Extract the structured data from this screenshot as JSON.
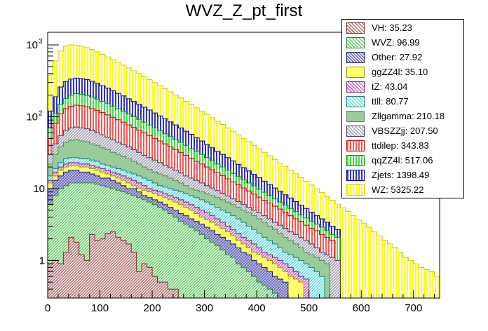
{
  "chart_data": {
    "type": "stacked-histogram",
    "title": "WVZ_Z_pt_first",
    "xlabel": "",
    "ylabel": "",
    "y_scale": "log",
    "xlim": [
      0,
      750
    ],
    "ylim": [
      0.3,
      1500
    ],
    "bin_width": 10,
    "x_ticks": [
      0,
      100,
      200,
      300,
      400,
      500,
      600,
      700
    ],
    "x_tick_labels": [
      "0",
      "100",
      "200",
      "300",
      "400",
      "500",
      "600",
      "700"
    ],
    "y_tick_labels": [
      {
        "value": 1,
        "label": "1"
      },
      {
        "value": 10,
        "label": "10"
      },
      {
        "value": 100,
        "label": "10",
        "exp": "2"
      },
      {
        "value": 1000,
        "label": "10",
        "exp": "3"
      }
    ],
    "legend_position": "top-right",
    "series": [
      {
        "name": "VH: 35.23",
        "color": "#b07070",
        "edge": "#7a2a2a",
        "pattern": "diag"
      },
      {
        "name": "WVZ: 96.99",
        "color": "#66cc66",
        "edge": "#2a8a2a",
        "pattern": "diag"
      },
      {
        "name": "Other: 27.92",
        "color": "#7070c0",
        "edge": "#202080",
        "pattern": "cross"
      },
      {
        "name": "ggZZ4l: 35.10",
        "color": "#ffff66",
        "edge": "#999900",
        "pattern": "solid"
      },
      {
        "name": "tZ: 43.04",
        "color": "#cc66cc",
        "edge": "#7a2a7a",
        "pattern": "diag"
      },
      {
        "name": "ttll: 80.77",
        "color": "#66dddd",
        "edge": "#208080",
        "pattern": "diag"
      },
      {
        "name": "Zllgamma: 210.18",
        "color": "#99cc99",
        "edge": "#5a8a5a",
        "pattern": "solid"
      },
      {
        "name": "VBSZZjj: 207.50",
        "color": "#a0a0b0",
        "edge": "#404060",
        "pattern": "diag"
      },
      {
        "name": "ttdilep: 343.83",
        "color": "#ff5555",
        "edge": "#cc0000",
        "pattern": "vert"
      },
      {
        "name": "qqZZ4l: 517.06",
        "color": "#44dd44",
        "edge": "#009900",
        "pattern": "vert"
      },
      {
        "name": "Zjets: 1398.49",
        "color": "#3333cc",
        "edge": "#000099",
        "pattern": "vert"
      },
      {
        "name": "WZ: 5325.22",
        "color": "#ffff00",
        "edge": "#cccc00",
        "pattern": "vert"
      }
    ],
    "stack_totals": [
      [
        0.9,
        1.0,
        0.9,
        1.3,
        2.1,
        1.8,
        1.2,
        1.0,
        2.3,
        1.9,
        2.0,
        2.4,
        2.5,
        2.1,
        1.9,
        1.7,
        1.3,
        0.7,
        0.9,
        0.8,
        0.6,
        0.5,
        0.5,
        0.4,
        0.4
      ],
      [
        6.0,
        8.0,
        10.0,
        11.0,
        12.0,
        12.0,
        12.0,
        12.0,
        12.0,
        11.5,
        11.0,
        10.5,
        10.0,
        9.5,
        9.0,
        8.5,
        8.0,
        7.5,
        7.0,
        6.5,
        6.0,
        5.5,
        5.0,
        4.5,
        4.0,
        3.5,
        3.2,
        2.9,
        2.6,
        2.3,
        2.0,
        1.8,
        1.6,
        1.4,
        1.2,
        1.1,
        0.9,
        0.8,
        0.7,
        0.6,
        0.5,
        0.45,
        0.4,
        0.35
      ],
      [
        10,
        13,
        15,
        17,
        18,
        18,
        17,
        17,
        16,
        15,
        14,
        14,
        13,
        12,
        11,
        10,
        10,
        9,
        8,
        7.5,
        7,
        6.5,
        6,
        5.5,
        5,
        4.5,
        4.2,
        3.8,
        3.5,
        3.2,
        2.9,
        2.6,
        2.3,
        2.1,
        1.9,
        1.7,
        1.5,
        1.3,
        1.2,
        1.0,
        0.9,
        0.8,
        0.7,
        0.6,
        0.55,
        0.5
      ],
      [
        12,
        15,
        18,
        20,
        21,
        21,
        20,
        20,
        19,
        18,
        17,
        16,
        15,
        14,
        13,
        12,
        11,
        10,
        9.5,
        9,
        8.5,
        8,
        7.5,
        7,
        6.5,
        6,
        5.5,
        5,
        4.5,
        4,
        3.7,
        3.4,
        3.1,
        2.8,
        2.5,
        2.2,
        1.9,
        1.7,
        1.5,
        1.3,
        1.2,
        1.1,
        1.0,
        0.9,
        0.8,
        0.7,
        0.6,
        0.55,
        0.5
      ],
      [
        13,
        17,
        20,
        22,
        23,
        23,
        22,
        22,
        21,
        20,
        19,
        18,
        17,
        16,
        15,
        14,
        13,
        12,
        11,
        10,
        9.5,
        9,
        8.5,
        8,
        7.5,
        7,
        6.5,
        6,
        5.5,
        5,
        4.6,
        4.2,
        3.8,
        3.4,
        3.0,
        2.7,
        2.4,
        2.1,
        1.9,
        1.7,
        1.5,
        1.3,
        1.2,
        1.1,
        1.0,
        0.9,
        0.8,
        0.7,
        0.6,
        0.55
      ],
      [
        15,
        19,
        23,
        26,
        27,
        27,
        26,
        26,
        25,
        24,
        22,
        21,
        20,
        19,
        18,
        17,
        16,
        15,
        14,
        13,
        12,
        11,
        10.5,
        10,
        9.5,
        9,
        8.5,
        8,
        7.5,
        7,
        6.5,
        6,
        5.5,
        5,
        4.6,
        4.2,
        3.8,
        3.4,
        3.0,
        2.7,
        2.4,
        2.1,
        1.9,
        1.7,
        1.5,
        1.3,
        1.2,
        1.1,
        1.0,
        0.9,
        0.8,
        0.7,
        0.6
      ],
      [
        22,
        30,
        38,
        44,
        47,
        48,
        46,
        45,
        42,
        40,
        37,
        35,
        32,
        30,
        28,
        26,
        24,
        22,
        20,
        18.5,
        17,
        16,
        15,
        14,
        13,
        12,
        11,
        10,
        9.5,
        9,
        8.5,
        8,
        7.5,
        7,
        6.5,
        6,
        5.5,
        5,
        4.6,
        4.2,
        3.8,
        3.4,
        3.0,
        2.7,
        2.4,
        2.1,
        1.9,
        1.7,
        1.5,
        1.3,
        1.2,
        1.1,
        1.0,
        0.9
      ],
      [
        30,
        42,
        55,
        65,
        70,
        72,
        70,
        68,
        64,
        60,
        56,
        52,
        48,
        44,
        41,
        38,
        35,
        32,
        29,
        27,
        25,
        23,
        21,
        19.5,
        18,
        16.5,
        15,
        14,
        13,
        12,
        11,
        10.2,
        9.4,
        8.6,
        7.9,
        7.2,
        6.6,
        6.0,
        5.5,
        5.0,
        4.6,
        4.2,
        3.8,
        3.4,
        3.1,
        2.8,
        2.5,
        2.3,
        2.1,
        1.9,
        1.7,
        1.5,
        1.3,
        1.2,
        1.1,
        1.0
      ],
      [
        50,
        80,
        110,
        130,
        140,
        145,
        142,
        138,
        130,
        122,
        114,
        106,
        98,
        91,
        84,
        77,
        71,
        65,
        60,
        55,
        50,
        46,
        42,
        38,
        35,
        32,
        29,
        26.5,
        24,
        22,
        20,
        18.3,
        16.6,
        15.1,
        13.7,
        12.4,
        11.3,
        10.2,
        9.3,
        8.4,
        7.6,
        6.9,
        6.3,
        5.7,
        5.2,
        4.7,
        4.2,
        3.8,
        3.5,
        3.1,
        2.8,
        2.6,
        2.3,
        2.1,
        1.9
      ],
      [
        70,
        110,
        150,
        180,
        200,
        210,
        205,
        198,
        188,
        176,
        164,
        152,
        140,
        129,
        119,
        109,
        100,
        92,
        84,
        77,
        70,
        64,
        58,
        53,
        48,
        44,
        40,
        36,
        33,
        30,
        27,
        24.5,
        22,
        20,
        18,
        16.3,
        14.7,
        13.3,
        12,
        10.9,
        9.8,
        8.9,
        8.0,
        7.2,
        6.5,
        5.9,
        5.3,
        4.8,
        4.3,
        3.9,
        3.5,
        3.2,
        2.9,
        2.6,
        2.3,
        2.1
      ],
      [
        120,
        190,
        260,
        310,
        335,
        345,
        340,
        330,
        312,
        292,
        270,
        250,
        230,
        212,
        195,
        178,
        163,
        149,
        136,
        124,
        113,
        103,
        94,
        85,
        77,
        70,
        63,
        57,
        51,
        46,
        41,
        37,
        33,
        30,
        27,
        24.3,
        21.8,
        19.6,
        17.6,
        15.8,
        14.2,
        12.7,
        11.4,
        10.2,
        9.2,
        8.2,
        7.4,
        6.6,
        5.9,
        5.3,
        4.7,
        4.2,
        3.8,
        3.4,
        3.0,
        2.7
      ],
      [
        380,
        600,
        820,
        960,
        1000,
        990,
        960,
        915,
        860,
        800,
        740,
        680,
        625,
        572,
        523,
        478,
        436,
        397,
        361,
        328,
        298,
        270,
        245,
        222,
        201,
        182,
        164,
        148,
        133,
        120,
        108,
        97,
        87,
        78,
        70,
        63,
        56,
        50,
        45,
        40,
        36,
        32,
        28.5,
        25.5,
        22.7,
        20.2,
        18.0,
        16.0,
        14.2,
        12.6,
        11.2,
        9.9,
        8.8,
        7.8,
        6.9,
        6.1,
        5.4,
        4.8,
        4.2,
        3.7,
        3.3,
        2.9,
        2.5,
        2.2,
        1.9,
        1.7,
        1.5,
        1.3,
        1.1,
        1.0,
        0.9,
        0.8,
        0.75,
        0.7,
        0.6
      ]
    ]
  }
}
